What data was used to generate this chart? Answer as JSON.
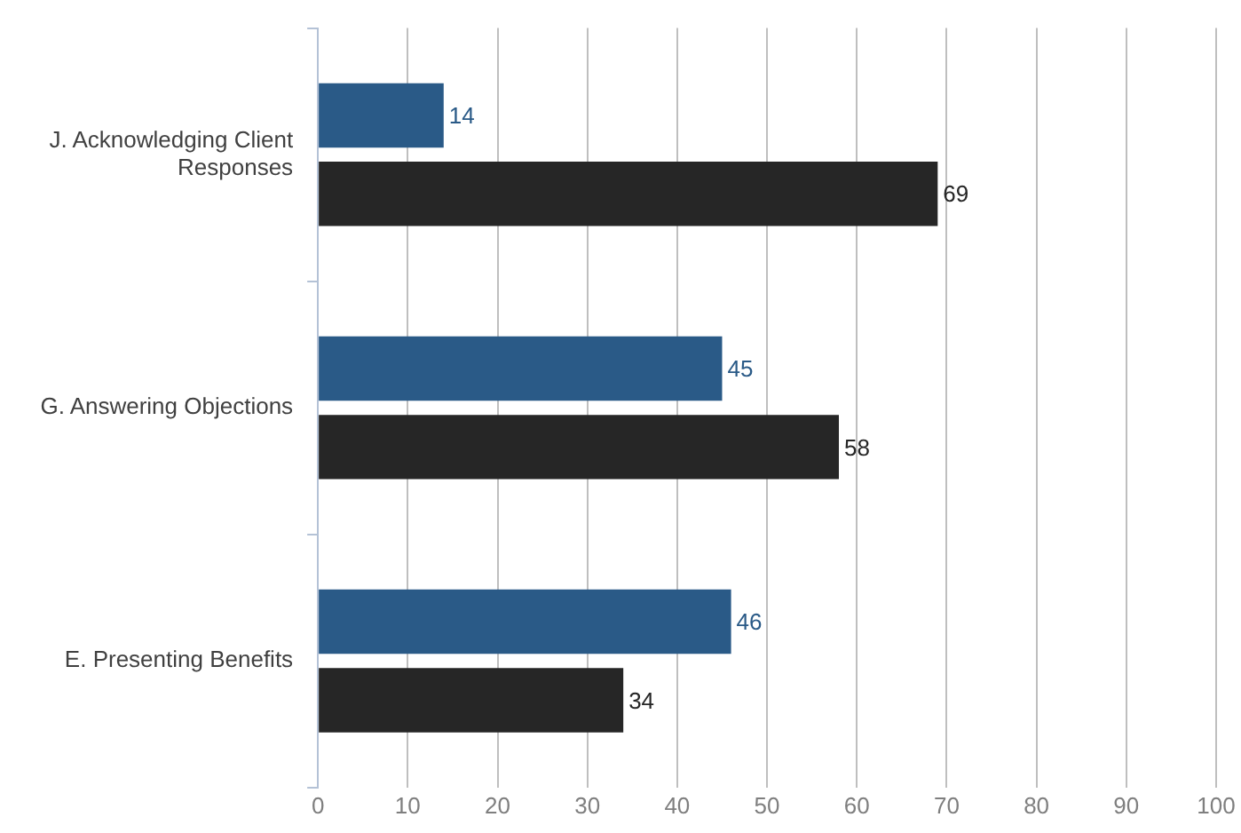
{
  "chart_data": {
    "type": "bar",
    "orientation": "horizontal",
    "categories": [
      "J. Acknowledging Client Responses",
      "G. Answering Objections",
      "E. Presenting Benefits"
    ],
    "series": [
      {
        "color": "#2a5a87",
        "values": [
          14,
          45,
          46
        ]
      },
      {
        "color": "#262626",
        "values": [
          69,
          58,
          34
        ]
      }
    ],
    "xlim": [
      0,
      100
    ],
    "xticks": [
      0,
      10,
      20,
      30,
      40,
      50,
      60,
      70,
      80,
      90,
      100
    ],
    "grid": "x",
    "data_labels": true
  }
}
